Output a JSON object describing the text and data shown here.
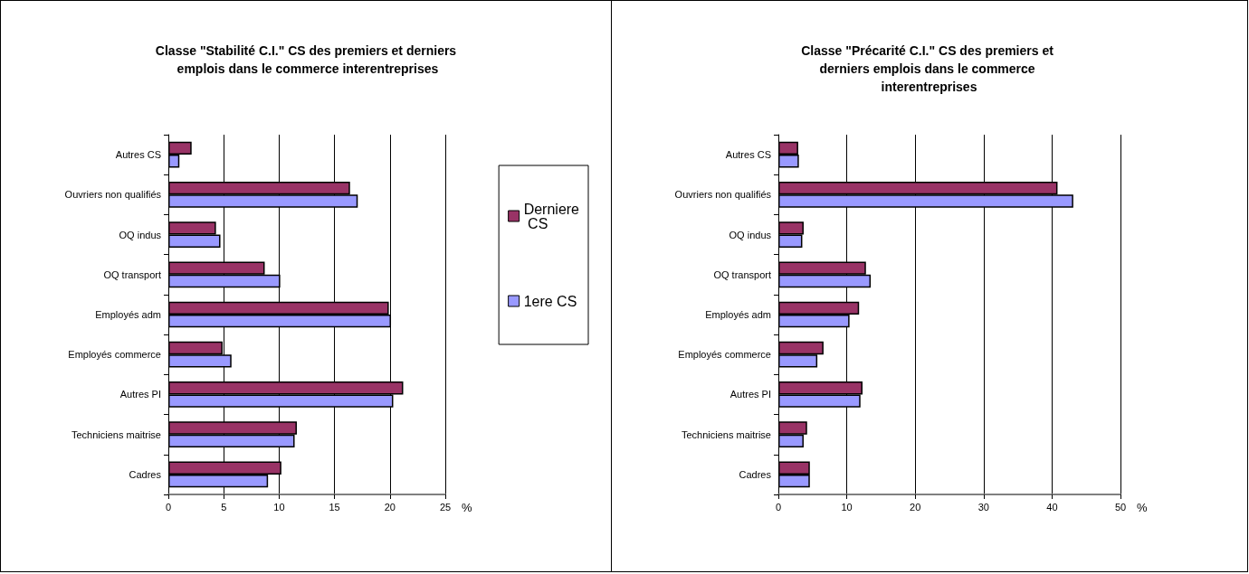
{
  "chart_data": [
    {
      "type": "bar",
      "orientation": "horizontal",
      "title": "Classe \"Stabilité C.I.\" CS des premiers et derniers emplois dans le commerce interentreprises",
      "xlabel": "%",
      "categories": [
        "Autres CS",
        "Ouvriers non qualifiés",
        "OQ indus",
        "OQ transport",
        "Employés adm",
        "Employés commerce",
        "Autres PI",
        "Techniciens maitrise",
        "Cadres"
      ],
      "series": [
        {
          "name": "Derniere CS",
          "color": "#993366",
          "values": [
            2.1,
            16.4,
            4.3,
            8.7,
            19.9,
            4.9,
            21.2,
            11.6,
            10.2
          ]
        },
        {
          "name": "1ere CS",
          "color": "#9999ff",
          "values": [
            1.0,
            17.1,
            4.7,
            10.1,
            20.1,
            5.7,
            20.3,
            11.4,
            9.0
          ]
        }
      ],
      "xlim": [
        0,
        25
      ],
      "xticks": [
        0,
        5,
        10,
        15,
        20,
        25
      ],
      "grid": "x",
      "legend": "right"
    },
    {
      "type": "bar",
      "orientation": "horizontal",
      "title": "Classe \"Précarité C.I.\" CS des premiers et derniers emplois dans le commerce interentreprises",
      "xlabel": "%",
      "categories": [
        "Autres CS",
        "Ouvriers non qualifiés",
        "OQ indus",
        "OQ transport",
        "Employés adm",
        "Employés commerce",
        "Autres PI",
        "Techniciens maitrise",
        "Cadres"
      ],
      "series": [
        {
          "color": "#993366",
          "values": [
            2.9,
            40.8,
            3.7,
            12.8,
            11.8,
            6.6,
            12.3,
            4.2,
            4.6
          ]
        },
        {
          "color": "#9999ff",
          "values": [
            3.0,
            43.1,
            3.5,
            13.5,
            10.4,
            5.7,
            12.0,
            3.7,
            4.6
          ]
        }
      ],
      "xlim": [
        0,
        50
      ],
      "xticks": [
        0,
        10,
        20,
        30,
        40,
        50
      ],
      "grid": "x",
      "legend": false
    }
  ]
}
